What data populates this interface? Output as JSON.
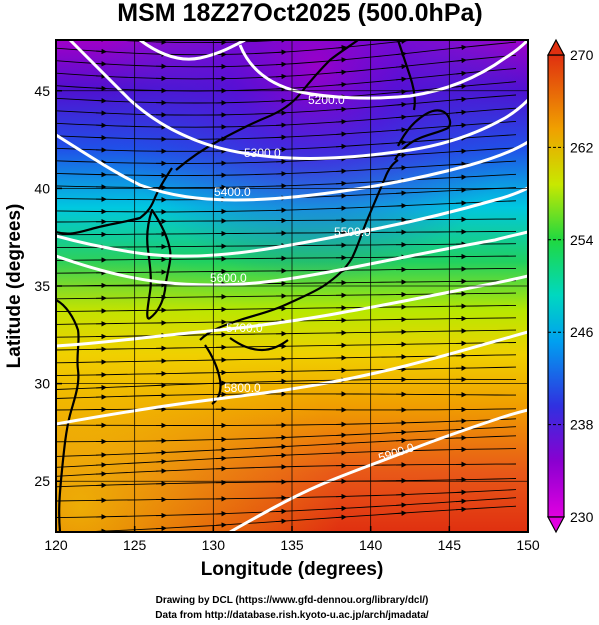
{
  "title": "MSM 18Z27Oct2025 (500.0hPa)",
  "credits": {
    "line1": "Drawing by DCL (https://www.gfd-dennou.org/library/dcl/)",
    "line2": "Data from http://database.rish.kyoto-u.ac.jp/arch/jmadata/"
  },
  "chart_data": {
    "type": "heatmap",
    "title": "MSM 18Z27Oct2025 (500.0hPa)",
    "xlabel": "Longitude (degrees)",
    "ylabel": "Latitude  (degrees)",
    "xlim": [
      120,
      150
    ],
    "ylim": [
      22.4,
      47.6
    ],
    "x_ticks": [
      "120",
      "125",
      "130",
      "135",
      "140",
      "145",
      "150"
    ],
    "y_ticks": [
      "25",
      "30",
      "35",
      "40",
      "45"
    ],
    "grid": true,
    "colorbar": {
      "min": 230,
      "max": 270,
      "ticks": [
        "230",
        "238",
        "246",
        "254",
        "262",
        "270"
      ],
      "placement": "right",
      "colors": [
        "#e000e0",
        "#6a00d0",
        "#2050e8",
        "#00c8e8",
        "#20d860",
        "#c8e800",
        "#f0a000",
        "#e03010"
      ]
    },
    "contours": [
      {
        "label": "5200.0",
        "value": 5200
      },
      {
        "label": "5300.0",
        "value": 5300
      },
      {
        "label": "5400.0",
        "value": 5400
      },
      {
        "label": "5500.0",
        "value": 5500
      },
      {
        "label": "5600.0",
        "value": 5600
      },
      {
        "label": "5700.0",
        "value": 5700
      },
      {
        "label": "5800.0",
        "value": 5800
      },
      {
        "label": "5900.0",
        "value": 5900
      }
    ]
  }
}
